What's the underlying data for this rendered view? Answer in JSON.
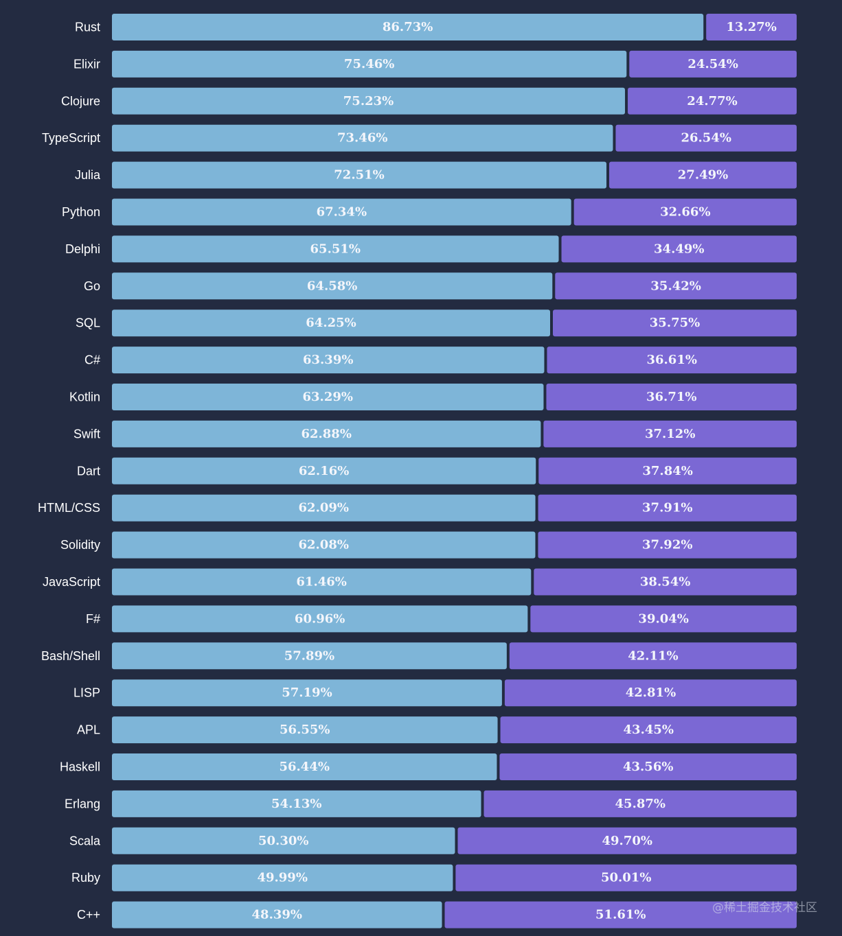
{
  "watermark": "@稀土掘金技术社区",
  "colors": {
    "background": "#232b41",
    "series_1": "#7eb5d8",
    "series_2": "#7b68d4",
    "label_text": "#ffffff",
    "bar_text": "#f4f6fb"
  },
  "chart_data": {
    "type": "bar",
    "orientation": "horizontal",
    "stacked": true,
    "grid": false,
    "legend": "none",
    "xlim": [
      0,
      100
    ],
    "categories": [
      "Rust",
      "Elixir",
      "Clojure",
      "TypeScript",
      "Julia",
      "Python",
      "Delphi",
      "Go",
      "SQL",
      "C#",
      "Kotlin",
      "Swift",
      "Dart",
      "HTML/CSS",
      "Solidity",
      "JavaScript",
      "F#",
      "Bash/Shell",
      "LISP",
      "APL",
      "Haskell",
      "Erlang",
      "Scala",
      "Ruby",
      "C++"
    ],
    "series": [
      {
        "values": [
          86.73,
          75.46,
          75.23,
          73.46,
          72.51,
          67.34,
          65.51,
          64.58,
          64.25,
          63.39,
          63.29,
          62.88,
          62.16,
          62.09,
          62.08,
          61.46,
          60.96,
          57.89,
          57.19,
          56.55,
          56.44,
          54.13,
          50.3,
          49.99,
          48.39
        ],
        "labels": [
          "86.73%",
          "75.46%",
          "75.23%",
          "73.46%",
          "72.51%",
          "67.34%",
          "65.51%",
          "64.58%",
          "64.25%",
          "63.39%",
          "63.29%",
          "62.88%",
          "62.16%",
          "62.09%",
          "62.08%",
          "61.46%",
          "60.96%",
          "57.89%",
          "57.19%",
          "56.55%",
          "56.44%",
          "54.13%",
          "50.30%",
          "49.99%",
          "48.39%"
        ]
      },
      {
        "values": [
          13.27,
          24.54,
          24.77,
          26.54,
          27.49,
          32.66,
          34.49,
          35.42,
          35.75,
          36.61,
          36.71,
          37.12,
          37.84,
          37.91,
          37.92,
          38.54,
          39.04,
          42.11,
          42.81,
          43.45,
          43.56,
          45.87,
          49.7,
          50.01,
          51.61
        ],
        "labels": [
          "13.27%",
          "24.54%",
          "24.77%",
          "26.54%",
          "27.49%",
          "32.66%",
          "34.49%",
          "35.42%",
          "35.75%",
          "36.61%",
          "36.71%",
          "37.12%",
          "37.84%",
          "37.91%",
          "37.92%",
          "38.54%",
          "39.04%",
          "42.11%",
          "42.81%",
          "43.45%",
          "43.56%",
          "45.87%",
          "49.70%",
          "50.01%",
          "51.61%"
        ]
      }
    ]
  }
}
